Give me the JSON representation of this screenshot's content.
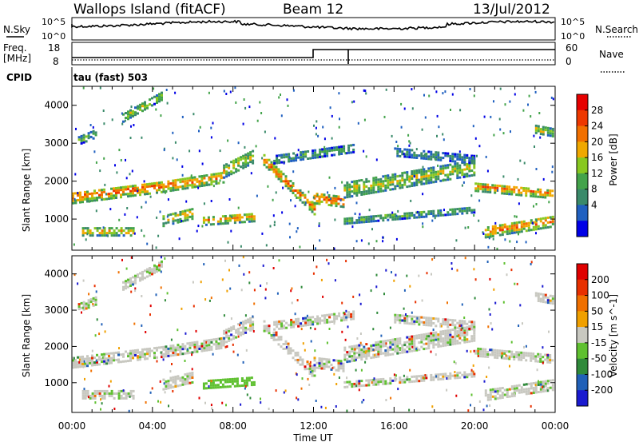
{
  "header": {
    "station": "Wallops Island (fitACF)",
    "beam": "Beam 12",
    "date": "13/Jul/2012"
  },
  "top_panels": {
    "nsky_label": "N.Sky",
    "nsearch_label": "N.Search",
    "freq_label_1": "Freq.",
    "freq_label_2": "[MHz]",
    "nave_label": "Nave",
    "cpid_label": "CPID",
    "cpid_text": "tau (fast) 503",
    "noise_ticks": [
      "10^5",
      "10^0"
    ],
    "freq_ticks": [
      "18",
      "8"
    ],
    "nave_ticks": [
      "60",
      "0"
    ]
  },
  "colors": {
    "power": [
      "#0000e6",
      "#2060c0",
      "#3a8a6a",
      "#43a34a",
      "#88c820",
      "#f0a800",
      "#f27000",
      "#ee3800",
      "#e60000"
    ],
    "velocity": [
      "#1a1ad0",
      "#2060b8",
      "#2f8a3a",
      "#5fc030",
      "#c8c8c0",
      "#f0a000",
      "#f07000",
      "#e83000",
      "#e00000"
    ]
  },
  "chart_data": [
    {
      "type": "heatmap",
      "name": "power",
      "xlabel": "Time UT",
      "ylabel": "Slant Range [km]",
      "colorbar_label": "Power [dB]",
      "colorbar_ticks": [
        "28",
        "24",
        "20",
        "16",
        "12",
        "8",
        "4"
      ],
      "x_ticks": [
        "00:00",
        "04:00",
        "08:00",
        "12:00",
        "16:00",
        "20:00",
        "00:00"
      ],
      "y_ticks": [
        "1000",
        "2000",
        "3000",
        "4000"
      ],
      "xlim_hours": [
        0,
        24
      ],
      "ylim_km": [
        180,
        4500
      ]
    },
    {
      "type": "heatmap",
      "name": "velocity",
      "xlabel": "Time UT",
      "ylabel": "Slant Range [km]",
      "colorbar_label": "Velocity [m s^-1]",
      "colorbar_ticks": [
        "200",
        "100",
        "50",
        "15",
        "-15",
        "-50",
        "-100",
        "-200"
      ],
      "x_ticks": [
        "00:00",
        "04:00",
        "08:00",
        "12:00",
        "16:00",
        "20:00",
        "00:00"
      ],
      "y_ticks": [
        "1000",
        "2000",
        "3000",
        "4000"
      ],
      "xlim_hours": [
        0,
        24
      ],
      "ylim_km": [
        180,
        4500
      ]
    }
  ]
}
